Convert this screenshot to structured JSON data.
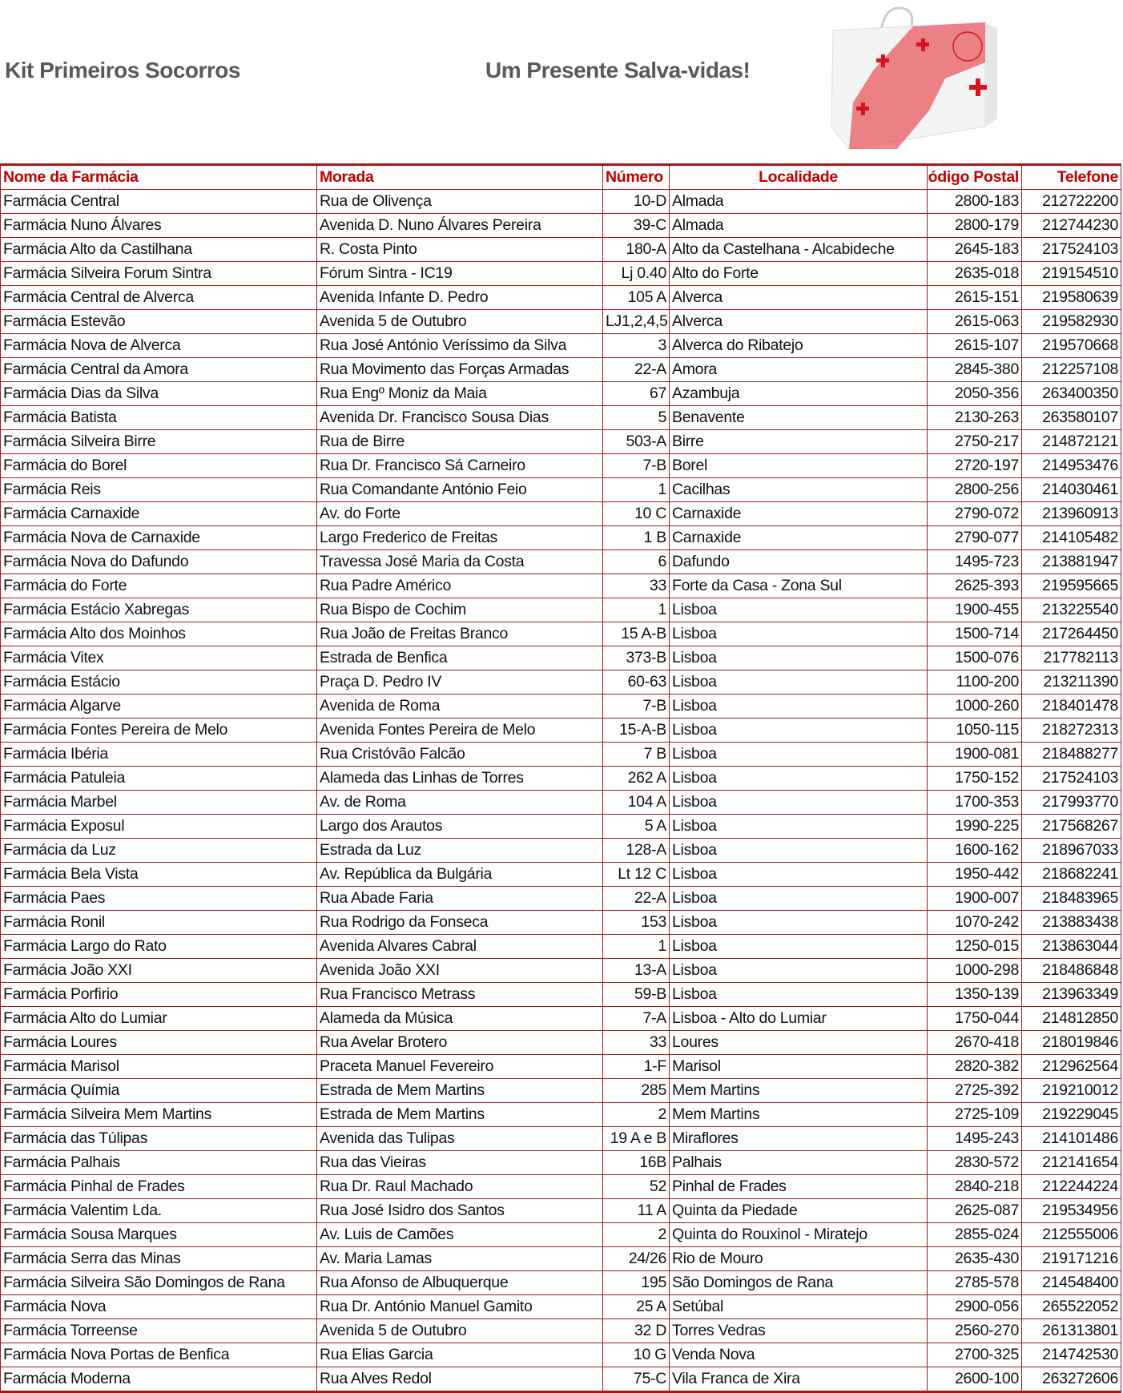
{
  "header": {
    "title_left": "Kit Primeiros Socorros",
    "title_right": "Um Presente Salva-vidas!",
    "product_image": "first-aid-kit-box-image"
  },
  "colors": {
    "header_text": "#c00000",
    "border": "#a01818",
    "title": "#595959"
  },
  "table": {
    "columns": [
      "Nome da Farmácia",
      "Morada",
      "Número",
      "Localidade",
      "Código Postal",
      "Telefone"
    ],
    "rows": [
      [
        "Farmácia Central",
        "Rua de Olivença",
        "10-D",
        "Almada",
        "2800-183",
        "212722200"
      ],
      [
        "Farmácia Nuno Álvares",
        "Avenida D. Nuno Álvares Pereira",
        "39-C",
        "Almada",
        "2800-179",
        "212744230"
      ],
      [
        "Farmácia Alto da Castilhana",
        "R. Costa Pinto",
        "180-A",
        "Alto da Castelhana - Alcabideche",
        "2645-183",
        "217524103"
      ],
      [
        "Farmácia Silveira Forum Sintra",
        "Fórum Sintra - IC19",
        "Lj 0.40",
        "Alto do Forte",
        "2635-018",
        "219154510"
      ],
      [
        "Farmácia Central de Alverca",
        "Avenida Infante D. Pedro",
        "105 A",
        "Alverca",
        "2615-151",
        "219580639"
      ],
      [
        "Farmácia Estevão",
        "Avenida 5 de Outubro",
        "LJ1,2,4,5",
        "Alverca",
        "2615-063",
        "219582930"
      ],
      [
        "Farmácia Nova de Alverca",
        "Rua José António Veríssimo da Silva",
        "3",
        "Alverca do Ribatejo",
        "2615-107",
        "219570668"
      ],
      [
        "Farmácia Central da Amora",
        "Rua Movimento das Forças Armadas",
        "22-A",
        "Amora",
        "2845-380",
        "212257108"
      ],
      [
        "Farmácia Dias da Silva",
        "Rua Engº Moniz da Maia",
        "67",
        "Azambuja",
        "2050-356",
        "263400350"
      ],
      [
        "Farmácia Batista",
        "Avenida Dr. Francisco Sousa Dias",
        "5",
        "Benavente",
        "2130-263",
        "263580107"
      ],
      [
        "Farmácia Silveira Birre",
        "Rua de Birre",
        "503-A",
        "Birre",
        "2750-217",
        "214872121"
      ],
      [
        "Farmácia do Borel",
        "Rua Dr. Francisco Sá Carneiro",
        "7-B",
        "Borel",
        "2720-197",
        "214953476"
      ],
      [
        "Farmácia Reis",
        "Rua Comandante António Feio",
        "1",
        "Cacilhas",
        "2800-256",
        "214030461"
      ],
      [
        "Farmácia Carnaxide",
        "Av. do Forte",
        "10 C",
        "Carnaxide",
        "2790-072",
        "213960913"
      ],
      [
        "Farmácia Nova de Carnaxide",
        "Largo Frederico de Freitas",
        "1 B",
        "Carnaxide",
        "2790-077",
        "214105482"
      ],
      [
        "Farmácia Nova do Dafundo",
        "Travessa José Maria da Costa",
        "6",
        "Dafundo",
        "1495-723",
        "213881947"
      ],
      [
        "Farmácia do Forte",
        "Rua Padre Américo",
        "33",
        "Forte da Casa - Zona Sul",
        "2625-393",
        "219595665"
      ],
      [
        "Farmácia Estácio Xabregas",
        "Rua Bispo de Cochim",
        "1",
        "Lisboa",
        "1900-455",
        "213225540"
      ],
      [
        "Farmácia Alto dos Moinhos",
        "Rua João de Freitas Branco",
        "15 A-B",
        "Lisboa",
        "1500-714",
        "217264450"
      ],
      [
        "Farmácia Vitex",
        "Estrada de Benfica",
        "373-B",
        "Lisboa",
        "1500-076",
        "217782113"
      ],
      [
        "Farmácia Estácio",
        "Praça D. Pedro IV",
        "60-63",
        "Lisboa",
        "1100-200",
        "213211390"
      ],
      [
        "Farmácia Algarve",
        "Avenida de Roma",
        "7-B",
        "Lisboa",
        "1000-260",
        "218401478"
      ],
      [
        "Farmácia Fontes Pereira de Melo",
        "Avenida Fontes Pereira de Melo",
        "15-A-B",
        "Lisboa",
        "1050-115",
        "218272313"
      ],
      [
        "Farmácia Ibéria",
        "Rua Cristóvão Falcão",
        "7 B",
        "Lisboa",
        "1900-081",
        "218488277"
      ],
      [
        "Farmácia Patuleia",
        "Alameda das Linhas de Torres",
        "262 A",
        "Lisboa",
        "1750-152",
        "217524103"
      ],
      [
        "Farmácia Marbel",
        "Av. de Roma",
        "104 A",
        "Lisboa",
        "1700-353",
        "217993770"
      ],
      [
        "Farmácia Exposul",
        "Largo dos Arautos",
        "5 A",
        "Lisboa",
        "1990-225",
        "217568267"
      ],
      [
        "Farmácia da Luz",
        "Estrada da Luz",
        "128-A",
        "Lisboa",
        "1600-162",
        "218967033"
      ],
      [
        "Farmácia Bela Vista",
        "Av. República da Bulgária",
        "Lt 12 C",
        "Lisboa",
        "1950-442",
        "218682241"
      ],
      [
        "Farmácia Paes",
        "Rua Abade Faria",
        "22-A",
        "Lisboa",
        "1900-007",
        "218483965"
      ],
      [
        "Farmácia Ronil",
        "Rua Rodrigo da Fonseca",
        "153",
        "Lisboa",
        "1070-242",
        "213883438"
      ],
      [
        "Farmácia Largo do Rato",
        "Avenida Alvares Cabral",
        "1",
        "Lisboa",
        "1250-015",
        "213863044"
      ],
      [
        "Farmácia João XXI",
        "Avenida João XXI",
        "13-A",
        "Lisboa",
        "1000-298",
        "218486848"
      ],
      [
        "Farmácia Porfirio",
        "Rua Francisco Metrass",
        "59-B",
        "Lisboa",
        "1350-139",
        "213963349"
      ],
      [
        "Farmácia Alto do Lumiar",
        "Alameda da Música",
        "7-A",
        "Lisboa - Alto do Lumiar",
        "1750-044",
        "214812850"
      ],
      [
        "Farmácia Loures",
        "Rua Avelar Brotero",
        "33",
        "Loures",
        "2670-418",
        "218019846"
      ],
      [
        "Farmácia Marisol",
        "Praceta Manuel Fevereiro",
        "1-F",
        "Marisol",
        "2820-382",
        "212962564"
      ],
      [
        "Farmácia Químia",
        "Estrada de Mem Martins",
        "285",
        "Mem Martins",
        "2725-392",
        "219210012"
      ],
      [
        "Farmácia Silveira Mem Martins",
        "Estrada de Mem Martins",
        "2",
        "Mem Martins",
        "2725-109",
        "219229045"
      ],
      [
        "Farmácia das Túlipas",
        "Avenida das Tulipas",
        "19 A e B",
        "Miraflores",
        "1495-243",
        "214101486"
      ],
      [
        "Farmácia Palhais",
        "Rua das Vieiras",
        "16B",
        "Palhais",
        "2830-572",
        "212141654"
      ],
      [
        "Farmácia Pinhal de Frades",
        "Rua Dr. Raul Machado",
        "52",
        "Pinhal de Frades",
        "2840-218",
        "212244224"
      ],
      [
        "Farmácia Valentim Lda.",
        "Rua José Isidro dos Santos",
        "11 A",
        "Quinta da Piedade",
        "2625-087",
        "219534956"
      ],
      [
        "Farmácia Sousa Marques",
        "Av. Luis de Camões",
        "2",
        "Quinta do Rouxinol - Miratejo",
        "2855-024",
        "212555006"
      ],
      [
        "Farmácia Serra das Minas",
        "Av. Maria Lamas",
        "24/26",
        "Rio de Mouro",
        "2635-430",
        "219171216"
      ],
      [
        "Farmácia Silveira São Domingos de Rana",
        "Rua Afonso de Albuquerque",
        "195",
        "São Domingos de Rana",
        "2785-578",
        "214548400"
      ],
      [
        "Farmácia Nova",
        "Rua Dr. António Manuel Gamito",
        "25 A",
        "Setúbal",
        "2900-056",
        "265522052"
      ],
      [
        "Farmácia Torreense",
        "Avenida 5 de Outubro",
        "32 D",
        "Torres Vedras",
        "2560-270",
        "261313801"
      ],
      [
        "Farmácia Nova Portas de Benfica",
        "Rua Elias Garcia",
        "10 G",
        "Venda Nova",
        "2700-325",
        "214742530"
      ],
      [
        "Farmácia Moderna",
        "Rua Alves Redol",
        "75-C",
        "Vila Franca de Xira",
        "2600-100",
        "263272606"
      ]
    ]
  }
}
